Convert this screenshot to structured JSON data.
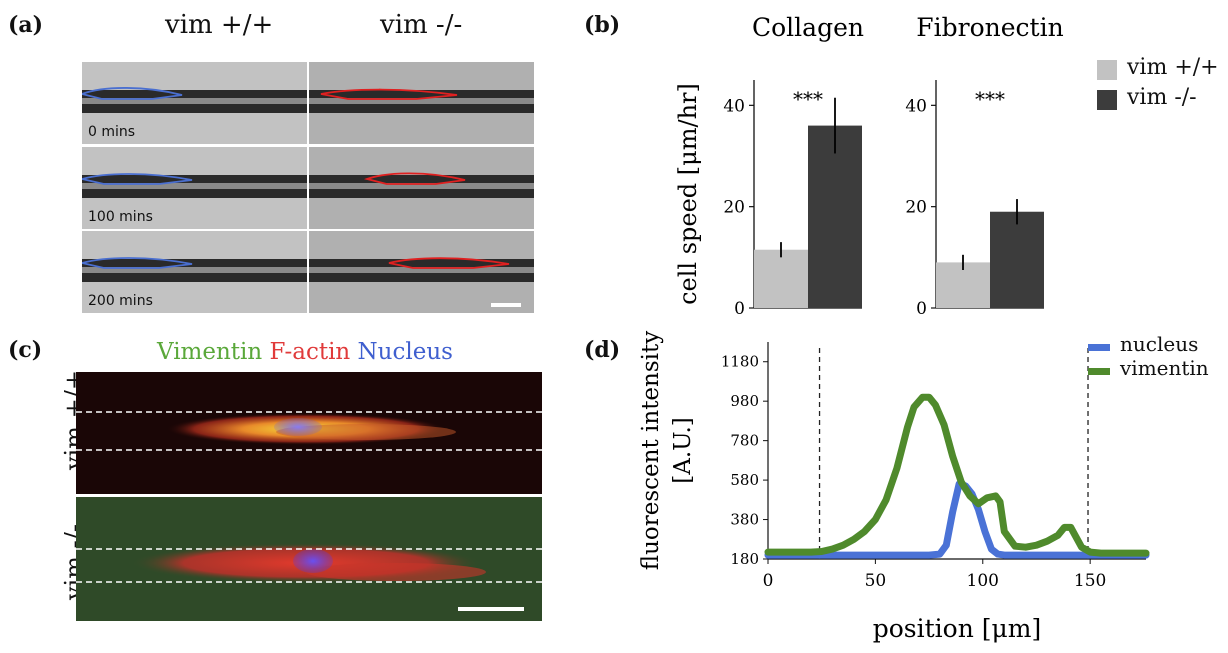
{
  "panel_a": {
    "label": "(a)",
    "col_titles": [
      "vim +/+",
      "vim -/-"
    ],
    "time_labels": [
      "0 mins",
      "100 mins",
      "200 mins"
    ],
    "outline_colors": {
      "vim_pos": "#4a6fd0",
      "vim_neg": "#e02020"
    }
  },
  "panel_c": {
    "label": "(c)",
    "stain_labels": {
      "vimentin": "Vimentin",
      "factin": "F-actin",
      "nucleus": "Nucleus"
    },
    "stain_colors": {
      "vimentin": "#5aa83a",
      "factin": "#e03a3a",
      "nucleus": "#3f5fcf"
    },
    "row_labels": [
      "vim +/+",
      "vim -/-"
    ]
  },
  "panel_b": {
    "label": "(b)",
    "legend": [
      {
        "name": "vim +/+",
        "color": "#c2c2c2"
      },
      {
        "name": "vim -/-",
        "color": "#3c3c3c"
      }
    ]
  },
  "panel_d": {
    "label": "(d)",
    "legend": [
      {
        "name": "nucleus",
        "color": "#4a72d6"
      },
      {
        "name": "vimentin",
        "color": "#4f8a2c"
      }
    ]
  },
  "chart_data": [
    {
      "type": "bar",
      "title": "Collagen",
      "ylabel": "cell speed [μm/hr]",
      "categories": [
        "vim +/+",
        "vim -/-"
      ],
      "values": [
        11.5,
        36
      ],
      "errors": [
        1.5,
        5.5
      ],
      "ylim": [
        0,
        45
      ],
      "yticks": [
        0,
        20,
        40
      ],
      "annotation": "***"
    },
    {
      "type": "bar",
      "title": "Fibronectin",
      "categories": [
        "vim +/+",
        "vim -/-"
      ],
      "values": [
        9,
        19
      ],
      "errors": [
        1.5,
        2.5
      ],
      "ylim": [
        0,
        45
      ],
      "yticks": [
        0,
        20,
        40
      ],
      "annotation": "***"
    },
    {
      "type": "line",
      "xlabel": "position [μm]",
      "ylabel": "fluorescent intensity [A.U.]",
      "xlim": [
        0,
        176
      ],
      "ylim": [
        180,
        1280
      ],
      "xticks": [
        0,
        50,
        100,
        150
      ],
      "yticks": [
        180,
        380,
        580,
        780,
        980,
        1180
      ],
      "vlines": [
        24,
        149
      ],
      "series": [
        {
          "name": "nucleus",
          "x": [
            0,
            10,
            20,
            30,
            40,
            50,
            60,
            70,
            75,
            80,
            83,
            86,
            89,
            92,
            95,
            98,
            101,
            104,
            107,
            110,
            120,
            130,
            140,
            150,
            160,
            176
          ],
          "y": [
            200,
            200,
            200,
            200,
            200,
            200,
            200,
            200,
            200,
            205,
            250,
            420,
            560,
            550,
            510,
            430,
            320,
            230,
            205,
            200,
            200,
            200,
            200,
            200,
            200,
            200
          ]
        },
        {
          "name": "vimentin",
          "x": [
            0,
            10,
            20,
            25,
            30,
            35,
            40,
            45,
            50,
            55,
            60,
            65,
            68,
            72,
            75,
            78,
            82,
            86,
            90,
            94,
            98,
            102,
            106,
            108,
            110,
            115,
            120,
            125,
            130,
            135,
            138,
            141,
            143,
            146,
            150,
            155,
            160,
            170,
            176
          ],
          "y": [
            215,
            215,
            215,
            218,
            230,
            250,
            280,
            320,
            380,
            480,
            640,
            850,
            950,
            1000,
            1000,
            960,
            860,
            700,
            570,
            500,
            460,
            490,
            500,
            470,
            320,
            245,
            240,
            250,
            270,
            300,
            340,
            340,
            300,
            240,
            215,
            210,
            210,
            210,
            210
          ]
        }
      ]
    }
  ]
}
